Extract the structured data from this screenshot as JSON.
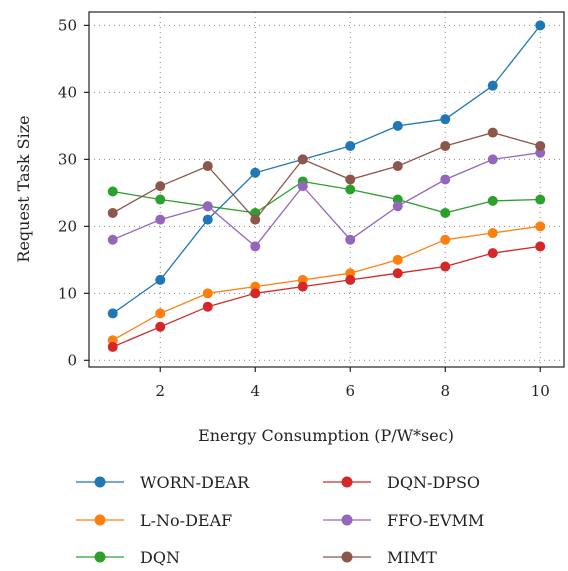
{
  "chart_data": {
    "type": "line",
    "xlabel": "Energy Consumption (P/W*sec)",
    "ylabel": "Request Task Size",
    "xlim": [
      0.5,
      10.5
    ],
    "ylim": [
      -1,
      52
    ],
    "xticks": [
      2,
      4,
      6,
      8,
      10
    ],
    "yticks": [
      0,
      10,
      20,
      30,
      40,
      50
    ],
    "grid": "dotted",
    "legend_placement": "bottom",
    "x": [
      1,
      2,
      3,
      4,
      5,
      6,
      7,
      8,
      9,
      10
    ],
    "series": [
      {
        "name": "WORN-DEAR",
        "color": "#1f77b4",
        "values": [
          7,
          12,
          21,
          28,
          30,
          32,
          35,
          36,
          41,
          50
        ]
      },
      {
        "name": "L-No-DEAF",
        "color": "#ff7f0e",
        "values": [
          3,
          7,
          10,
          11,
          12,
          13,
          15,
          18,
          19,
          20
        ]
      },
      {
        "name": "DQN",
        "color": "#2ca02c",
        "values": [
          25.2,
          24,
          23,
          22,
          26.7,
          25.5,
          24,
          22,
          23.8,
          24
        ]
      },
      {
        "name": "DQN-DPSO",
        "color": "#d62728",
        "values": [
          2,
          5,
          8,
          10,
          11,
          12,
          13,
          14,
          16,
          17
        ]
      },
      {
        "name": "FFO-EVMM",
        "color": "#9467bd",
        "values": [
          18,
          21,
          23,
          17,
          26,
          18,
          23,
          27,
          30,
          31
        ]
      },
      {
        "name": "MIMT",
        "color": "#8c564b",
        "values": [
          22,
          26,
          29,
          21,
          30,
          27,
          29,
          32,
          34,
          32
        ]
      }
    ]
  }
}
